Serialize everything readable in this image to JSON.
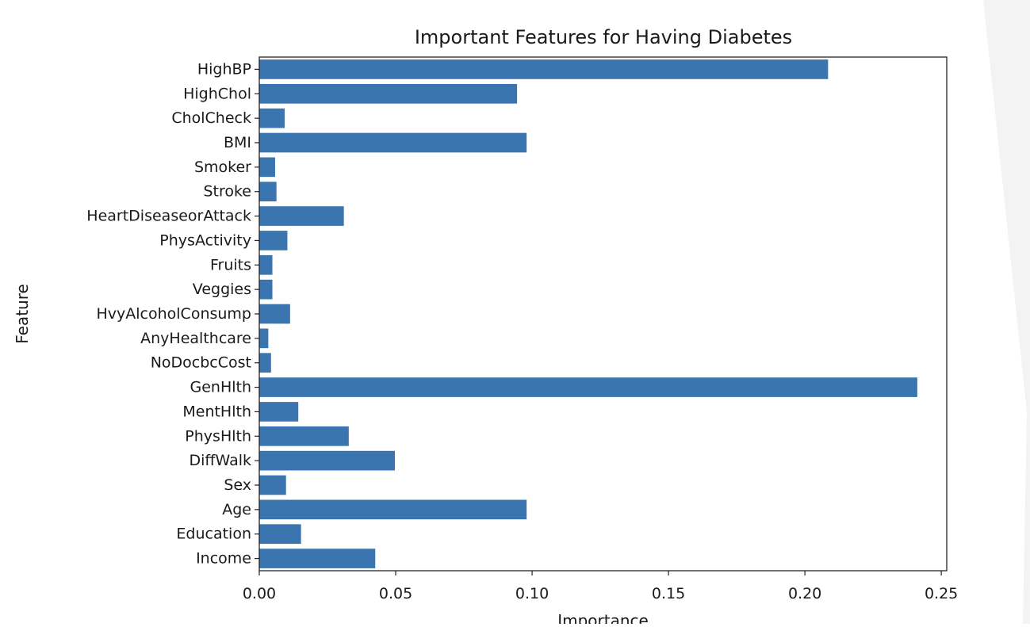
{
  "chart_data": {
    "type": "bar",
    "orientation": "horizontal",
    "title": "Important Features for Having Diabetes",
    "xlabel": "Importance",
    "ylabel": "Feature",
    "xlim": [
      0,
      0.252
    ],
    "xticks": [
      0.0,
      0.05,
      0.1,
      0.15,
      0.2,
      0.25
    ],
    "xtick_labels": [
      "0.00",
      "0.05",
      "0.10",
      "0.15",
      "0.20",
      "0.25"
    ],
    "grid": false,
    "bar_color": "#3a75af",
    "categories": [
      "HighBP",
      "HighChol",
      "CholCheck",
      "BMI",
      "Smoker",
      "Stroke",
      "HeartDiseaseorAttack",
      "PhysActivity",
      "Fruits",
      "Veggies",
      "HvyAlcoholConsump",
      "AnyHealthcare",
      "NoDocbcCost",
      "GenHlth",
      "MentHlth",
      "PhysHlth",
      "DiffWalk",
      "Sex",
      "Age",
      "Education",
      "Income"
    ],
    "values": [
      0.2085,
      0.0945,
      0.0093,
      0.098,
      0.0058,
      0.0063,
      0.031,
      0.0103,
      0.0048,
      0.0048,
      0.0113,
      0.0033,
      0.0043,
      0.2412,
      0.0143,
      0.0328,
      0.0497,
      0.0098,
      0.098,
      0.0153,
      0.0425
    ]
  }
}
